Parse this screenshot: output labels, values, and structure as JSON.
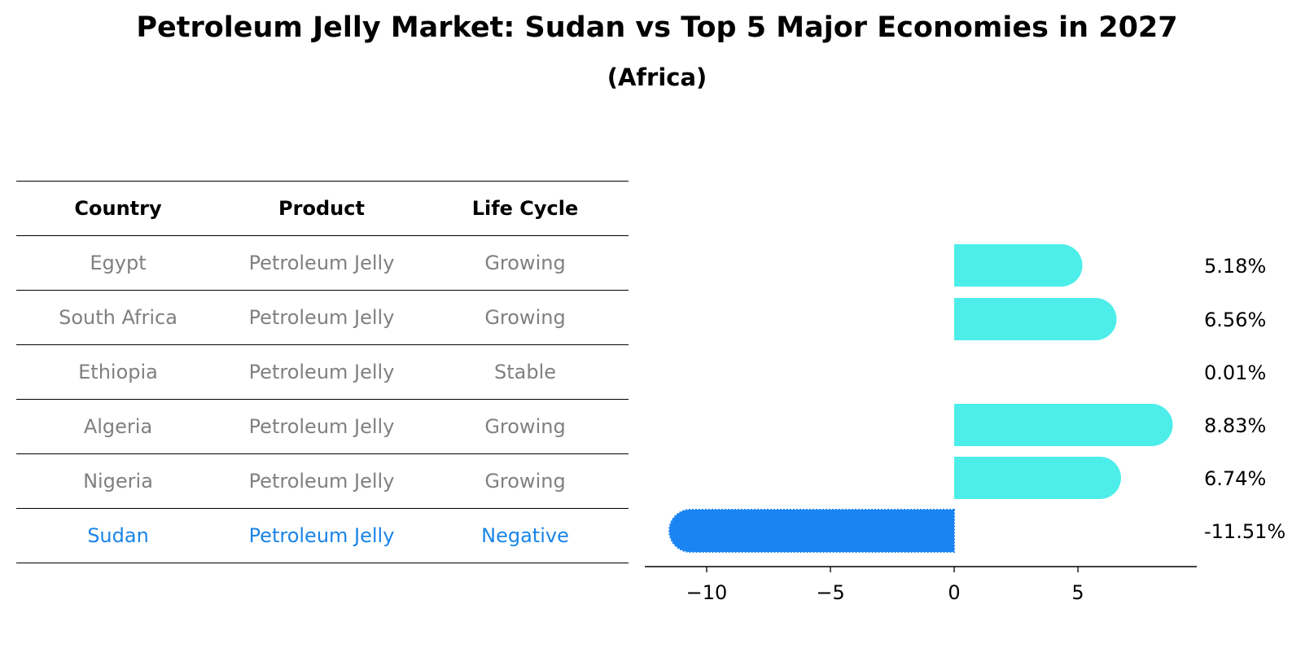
{
  "title": "Petroleum Jelly Market: Sudan vs Top 5 Major Economies in 2027",
  "subtitle": "(Africa)",
  "table": {
    "headers": [
      "Country",
      "Product",
      "Life Cycle"
    ],
    "rows": [
      [
        "Egypt",
        "Petroleum Jelly",
        "Growing"
      ],
      [
        "South Africa",
        "Petroleum Jelly",
        "Growing"
      ],
      [
        "Ethiopia",
        "Petroleum Jelly",
        "Stable"
      ],
      [
        "Algeria",
        "Petroleum Jelly",
        "Growing"
      ],
      [
        "Nigeria",
        "Petroleum Jelly",
        "Growing"
      ],
      [
        "Sudan",
        "Petroleum Jelly",
        "Negative"
      ]
    ]
  },
  "chart_data": {
    "type": "bar",
    "orientation": "horizontal",
    "categories": [
      "Egypt",
      "South Africa",
      "Ethiopia",
      "Algeria",
      "Nigeria",
      "Sudan"
    ],
    "values": [
      5.18,
      6.56,
      0.01,
      8.83,
      6.74,
      -11.51
    ],
    "value_labels": [
      "5.18%",
      "6.56%",
      "0.01%",
      "8.83%",
      "6.74%",
      "-11.51%"
    ],
    "highlight": "Sudan",
    "xlim": [
      -12.5,
      9.8
    ],
    "xticks": [
      -10,
      -5,
      0,
      5
    ],
    "xtick_labels": [
      "−10",
      "−5",
      "0",
      "5"
    ],
    "colors": {
      "positive": "#4deee9",
      "highlight": "#1a84f2",
      "highlight_text": "#1a84e6"
    }
  }
}
